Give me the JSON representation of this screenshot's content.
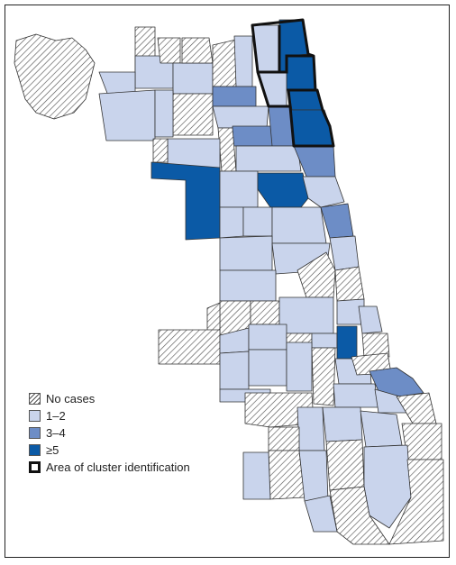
{
  "colors": {
    "no_cases": "hatched",
    "c1_2": "#c9d4ec",
    "c3_4": "#6d8dc6",
    "c5plus": "#0b5aa6",
    "cluster_outline": "#111111",
    "border": "#333333"
  },
  "legend": {
    "items": [
      {
        "label": "No cases",
        "style": "no_cases"
      },
      {
        "label": "1–2",
        "style": "c1_2"
      },
      {
        "label": "3–4",
        "style": "c3_4"
      },
      {
        "label": "≥5",
        "style": "c5plus"
      },
      {
        "label": "Area of cluster identification",
        "style": "cluster"
      }
    ]
  }
}
